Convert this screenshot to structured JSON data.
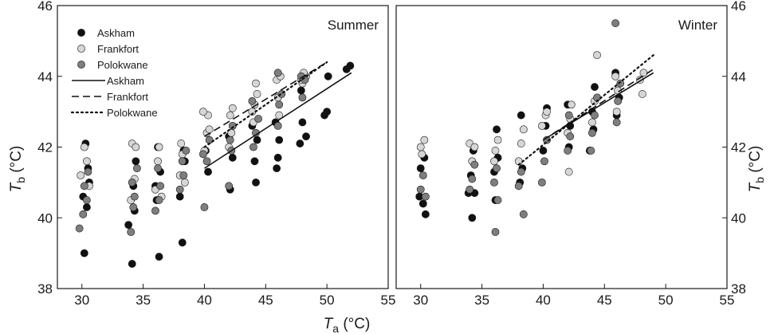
{
  "chart_data": {
    "type": "scatter",
    "xlabel_main": "T",
    "xlabel_sub": "a",
    "xlabel_unit": " (°C)",
    "ylabel_main": "T",
    "ylabel_sub": "b",
    "ylabel_unit": " (°C)",
    "xlim": [
      28,
      55
    ],
    "ylim": [
      38,
      46
    ],
    "xticks": [
      30,
      35,
      40,
      45,
      50,
      55
    ],
    "yticks": [
      38,
      40,
      42,
      44,
      46
    ],
    "colors": {
      "Askham": "#111111",
      "Frankfort": "#d6d6d6",
      "Polokwane": "#7e7e7e"
    },
    "legend": {
      "points": [
        "Askham",
        "Frankfort",
        "Polokwane"
      ],
      "lines": [
        {
          "name": "Askham",
          "dash": "solid"
        },
        {
          "name": "Frankfort",
          "dash": "dashed"
        },
        {
          "name": "Polokwane",
          "dash": "dotted"
        }
      ]
    },
    "panels": [
      {
        "label": "Summer",
        "lines": [
          {
            "name": "Askham",
            "dash": "solid",
            "x": [
              40,
              52
            ],
            "y": [
              41.4,
              44.1
            ]
          },
          {
            "name": "Frankfort",
            "dash": "dashed",
            "x": [
              40,
              50
            ],
            "y": [
              42.3,
              44.4
            ]
          },
          {
            "name": "Polokwane",
            "dash": "dotted",
            "x": [
              40,
              50
            ],
            "y": [
              42.0,
              44.4
            ]
          }
        ],
        "series": [
          {
            "name": "Askham",
            "points": [
              [
                30.2,
                39.0
              ],
              [
                30.4,
                40.3
              ],
              [
                30.1,
                40.6
              ],
              [
                30.6,
                41.0
              ],
              [
                30.3,
                42.1
              ],
              [
                30.5,
                41.4
              ],
              [
                33.8,
                39.8
              ],
              [
                34.1,
                38.7
              ],
              [
                34.3,
                40.2
              ],
              [
                34.2,
                40.9
              ],
              [
                34.4,
                41.6
              ],
              [
                36.3,
                38.9
              ],
              [
                36.1,
                40.5
              ],
              [
                36.4,
                41.3
              ],
              [
                36.2,
                42.0
              ],
              [
                36.0,
                40.9
              ],
              [
                38.2,
                39.3
              ],
              [
                38.0,
                40.6
              ],
              [
                38.4,
                41.6
              ],
              [
                38.3,
                41.9
              ],
              [
                40.3,
                41.3
              ],
              [
                40.1,
                41.9
              ],
              [
                42.1,
                40.8
              ],
              [
                42.3,
                41.7
              ],
              [
                42.0,
                42.3
              ],
              [
                44.2,
                41.0
              ],
              [
                44.1,
                41.6
              ],
              [
                44.3,
                42.2
              ],
              [
                43.9,
                42.6
              ],
              [
                45.9,
                41.4
              ],
              [
                46.0,
                41.7
              ],
              [
                46.1,
                42.2
              ],
              [
                45.8,
                42.7
              ],
              [
                47.8,
                42.1
              ],
              [
                48.3,
                42.3
              ],
              [
                48.0,
                42.7
              ],
              [
                47.9,
                43.6
              ],
              [
                49.8,
                42.9
              ],
              [
                50.0,
                43.0
              ],
              [
                50.1,
                44.0
              ],
              [
                51.6,
                44.2
              ],
              [
                51.9,
                44.3
              ]
            ]
          },
          {
            "name": "Frankfort",
            "points": [
              [
                29.9,
                41.2
              ],
              [
                30.2,
                42.0
              ],
              [
                30.4,
                41.6
              ],
              [
                30.6,
                40.9
              ],
              [
                34.0,
                40.5
              ],
              [
                34.3,
                41.1
              ],
              [
                34.1,
                42.1
              ],
              [
                34.4,
                42.0
              ],
              [
                36.0,
                40.8
              ],
              [
                36.2,
                41.6
              ],
              [
                36.3,
                42.0
              ],
              [
                36.5,
                40.6
              ],
              [
                38.0,
                41.2
              ],
              [
                38.2,
                41.8
              ],
              [
                38.1,
                42.1
              ],
              [
                38.4,
                41.0
              ],
              [
                40.0,
                41.9
              ],
              [
                40.2,
                42.4
              ],
              [
                40.3,
                42.9
              ],
              [
                39.9,
                43.0
              ],
              [
                40.4,
                42.5
              ],
              [
                42.0,
                42.0
              ],
              [
                42.1,
                42.9
              ],
              [
                42.3,
                43.1
              ],
              [
                42.2,
                42.4
              ],
              [
                44.0,
                42.7
              ],
              [
                44.1,
                43.2
              ],
              [
                44.3,
                43.5
              ],
              [
                44.2,
                43.8
              ],
              [
                43.9,
                43.0
              ],
              [
                46.0,
                43.4
              ],
              [
                45.9,
                43.9
              ],
              [
                46.2,
                44.0
              ],
              [
                46.1,
                42.9
              ],
              [
                48.0,
                43.8
              ],
              [
                48.3,
                44.0
              ],
              [
                48.1,
                44.1
              ],
              [
                47.9,
                43.9
              ]
            ]
          },
          {
            "name": "Polokwane",
            "points": [
              [
                29.8,
                39.7
              ],
              [
                30.1,
                40.1
              ],
              [
                30.4,
                40.5
              ],
              [
                30.2,
                40.9
              ],
              [
                30.5,
                41.3
              ],
              [
                34.0,
                39.6
              ],
              [
                34.2,
                40.3
              ],
              [
                34.3,
                40.6
              ],
              [
                34.5,
                41.4
              ],
              [
                34.1,
                41.0
              ],
              [
                36.0,
                40.2
              ],
              [
                36.3,
                40.5
              ],
              [
                36.4,
                40.9
              ],
              [
                36.2,
                41.4
              ],
              [
                38.0,
                40.8
              ],
              [
                38.3,
                41.2
              ],
              [
                38.2,
                41.6
              ],
              [
                38.5,
                41.9
              ],
              [
                40.0,
                40.3
              ],
              [
                40.2,
                41.6
              ],
              [
                40.4,
                42.2
              ],
              [
                39.9,
                41.8
              ],
              [
                42.0,
                40.9
              ],
              [
                42.2,
                41.9
              ],
              [
                42.3,
                42.6
              ],
              [
                42.1,
                42.2
              ],
              [
                44.0,
                42.0
              ],
              [
                44.2,
                42.4
              ],
              [
                44.4,
                42.8
              ],
              [
                43.9,
                43.3
              ],
              [
                46.0,
                42.6
              ],
              [
                46.1,
                43.2
              ],
              [
                46.3,
                43.5
              ],
              [
                46.0,
                44.1
              ],
              [
                48.0,
                43.4
              ],
              [
                48.2,
                43.9
              ],
              [
                47.9,
                44.0
              ]
            ]
          }
        ]
      },
      {
        "label": "Winter",
        "lines": [
          {
            "name": "Askham",
            "dash": "solid",
            "x": [
              40,
              49
            ],
            "y": [
              42.2,
              44.1
            ]
          },
          {
            "name": "Frankfort",
            "dash": "dashed",
            "x": [
              40,
              49
            ],
            "y": [
              42.2,
              44.2
            ]
          },
          {
            "name": "Polokwane",
            "dash": "dotted",
            "x": [
              38,
              49
            ],
            "y": [
              41.5,
              44.6
            ]
          }
        ],
        "series": [
          {
            "name": "Askham",
            "points": [
              [
                29.9,
                40.6
              ],
              [
                30.2,
                40.4
              ],
              [
                30.4,
                40.1
              ],
              [
                30.0,
                41.4
              ],
              [
                30.3,
                41.7
              ],
              [
                33.9,
                40.7
              ],
              [
                34.2,
                40.0
              ],
              [
                34.4,
                40.7
              ],
              [
                34.1,
                41.2
              ],
              [
                34.3,
                41.9
              ],
              [
                36.1,
                40.5
              ],
              [
                36.0,
                41.3
              ],
              [
                36.3,
                41.7
              ],
              [
                36.2,
                42.5
              ],
              [
                38.1,
                41.0
              ],
              [
                38.3,
                41.4
              ],
              [
                38.2,
                42.9
              ],
              [
                40.0,
                41.9
              ],
              [
                40.2,
                42.6
              ],
              [
                40.3,
                43.1
              ],
              [
                42.1,
                42.0
              ],
              [
                42.2,
                42.6
              ],
              [
                42.0,
                43.2
              ],
              [
                44.1,
                42.5
              ],
              [
                44.0,
                43.0
              ],
              [
                44.2,
                43.7
              ],
              [
                43.8,
                41.9
              ],
              [
                46.0,
                42.9
              ],
              [
                46.2,
                43.4
              ],
              [
                45.9,
                44.1
              ]
            ]
          },
          {
            "name": "Frankfort",
            "points": [
              [
                30.1,
                41.8
              ],
              [
                30.3,
                42.2
              ],
              [
                30.0,
                42.0
              ],
              [
                34.0,
                42.1
              ],
              [
                34.2,
                41.6
              ],
              [
                34.4,
                42.0
              ],
              [
                36.1,
                41.9
              ],
              [
                36.3,
                42.2
              ],
              [
                36.0,
                41.6
              ],
              [
                38.0,
                41.6
              ],
              [
                38.2,
                42.1
              ],
              [
                38.4,
                42.5
              ],
              [
                39.9,
                42.6
              ],
              [
                40.2,
                42.9
              ],
              [
                40.3,
                43.0
              ],
              [
                42.0,
                42.4
              ],
              [
                42.2,
                42.8
              ],
              [
                42.3,
                43.2
              ],
              [
                42.1,
                41.3
              ],
              [
                44.0,
                42.7
              ],
              [
                44.2,
                43.3
              ],
              [
                44.4,
                44.6
              ],
              [
                46.0,
                43.0
              ],
              [
                46.1,
                43.6
              ],
              [
                45.9,
                44.0
              ],
              [
                47.9,
                43.9
              ],
              [
                48.1,
                43.5
              ],
              [
                48.2,
                44.1
              ]
            ]
          },
          {
            "name": "Polokwane",
            "points": [
              [
                30.0,
                40.8
              ],
              [
                30.2,
                41.2
              ],
              [
                30.4,
                40.6
              ],
              [
                34.0,
                40.8
              ],
              [
                34.2,
                41.1
              ],
              [
                34.4,
                41.5
              ],
              [
                36.1,
                39.6
              ],
              [
                36.3,
                40.5
              ],
              [
                36.0,
                41.0
              ],
              [
                36.2,
                41.4
              ],
              [
                38.0,
                40.9
              ],
              [
                38.2,
                41.3
              ],
              [
                38.4,
                40.1
              ],
              [
                39.9,
                41.0
              ],
              [
                40.1,
                41.6
              ],
              [
                40.3,
                42.2
              ],
              [
                42.0,
                41.9
              ],
              [
                42.2,
                42.3
              ],
              [
                42.1,
                42.9
              ],
              [
                44.0,
                42.4
              ],
              [
                44.2,
                42.9
              ],
              [
                44.4,
                43.4
              ],
              [
                43.9,
                41.9
              ],
              [
                46.0,
                42.7
              ],
              [
                46.1,
                43.3
              ],
              [
                46.3,
                43.8
              ],
              [
                45.9,
                45.5
              ]
            ]
          }
        ]
      }
    ]
  }
}
